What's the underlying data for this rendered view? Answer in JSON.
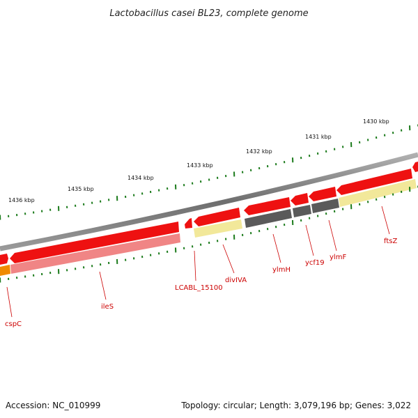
{
  "title": "Lactobacillus casei BL23, complete genome",
  "footer": {
    "accession": "Accession: NC_010999",
    "summary": "Topology: circular; Length: 3,079,196 bp; Genes: 3,022"
  },
  "colors": {
    "backbone": "#7a7a7a",
    "forward_gene": "#ee1111",
    "cds_red": "#f08585",
    "cds_yellow": "#f2e89a",
    "cds_gray": "#5a5a5a",
    "cds_orange": "#f08a00",
    "tick": "#1a7a1a",
    "label": "#cc0000"
  },
  "ruler": [
    {
      "label": "1430 kbp"
    },
    {
      "label": "1431 kbp"
    },
    {
      "label": "1432 kbp"
    },
    {
      "label": "1433 kbp"
    },
    {
      "label": "1434 kbp"
    },
    {
      "label": "1435 kbp"
    },
    {
      "label": "1436 kbp"
    }
  ],
  "genes": [
    {
      "name": "cspC"
    },
    {
      "name": "ileS"
    },
    {
      "name": "LCABL_15100"
    },
    {
      "name": "divIVA"
    },
    {
      "name": "ylmH"
    },
    {
      "name": "ycf19"
    },
    {
      "name": "ylmF"
    },
    {
      "name": "ftsZ"
    }
  ]
}
